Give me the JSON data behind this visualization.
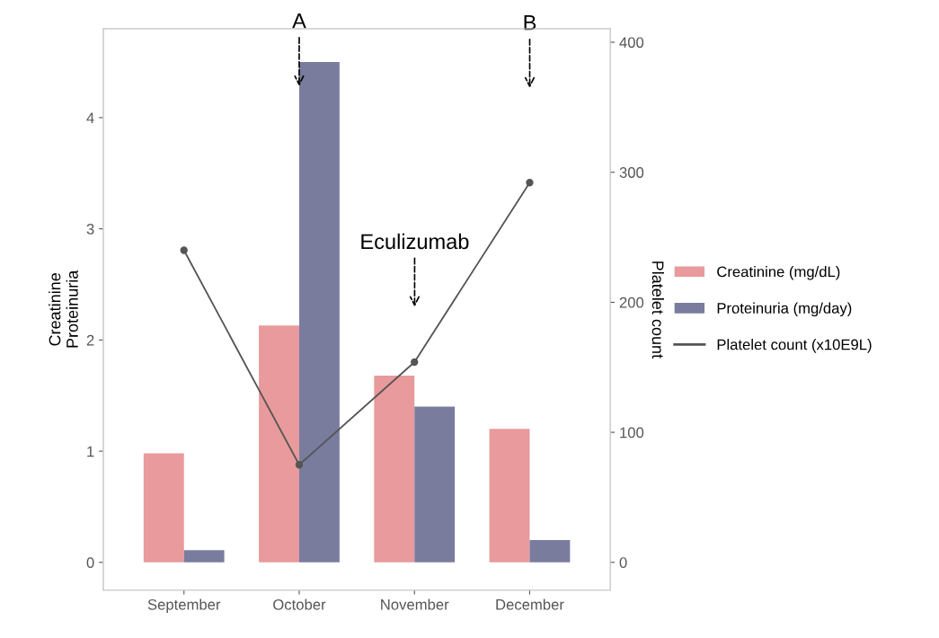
{
  "chart_data": {
    "type": "bar",
    "categories": [
      "September",
      "October",
      "November",
      "December"
    ],
    "ylabel": "Creatinine\nProteinuria",
    "y2label": "Platelet count",
    "ylim": [
      -0.25,
      4.8
    ],
    "yticks": [
      0,
      1,
      2,
      3,
      4
    ],
    "y2lim": [
      -21.4,
      410.4
    ],
    "y2ticks": [
      0,
      100,
      200,
      300,
      400
    ],
    "series": [
      {
        "name": "Creatinine (mg/dL)",
        "color": "#e89a9c",
        "values": [
          0.98,
          2.13,
          1.68,
          1.2
        ]
      },
      {
        "name": "Proteinuria (mg/day)",
        "color": "#7a7c9e",
        "values": [
          0.11,
          4.5,
          1.4,
          0.2
        ]
      },
      {
        "name": "Platelet count (x10E9L)",
        "type": "line",
        "axis": "y2",
        "color": "#555555",
        "marker": "circle",
        "line_style": "solid",
        "values": [
          240,
          75,
          154,
          292
        ]
      }
    ],
    "annotations": [
      {
        "text": "A",
        "x": "October",
        "y": 4.26
      },
      "B",
      "Eculizumab"
    ],
    "grid": false,
    "legend": "right"
  }
}
